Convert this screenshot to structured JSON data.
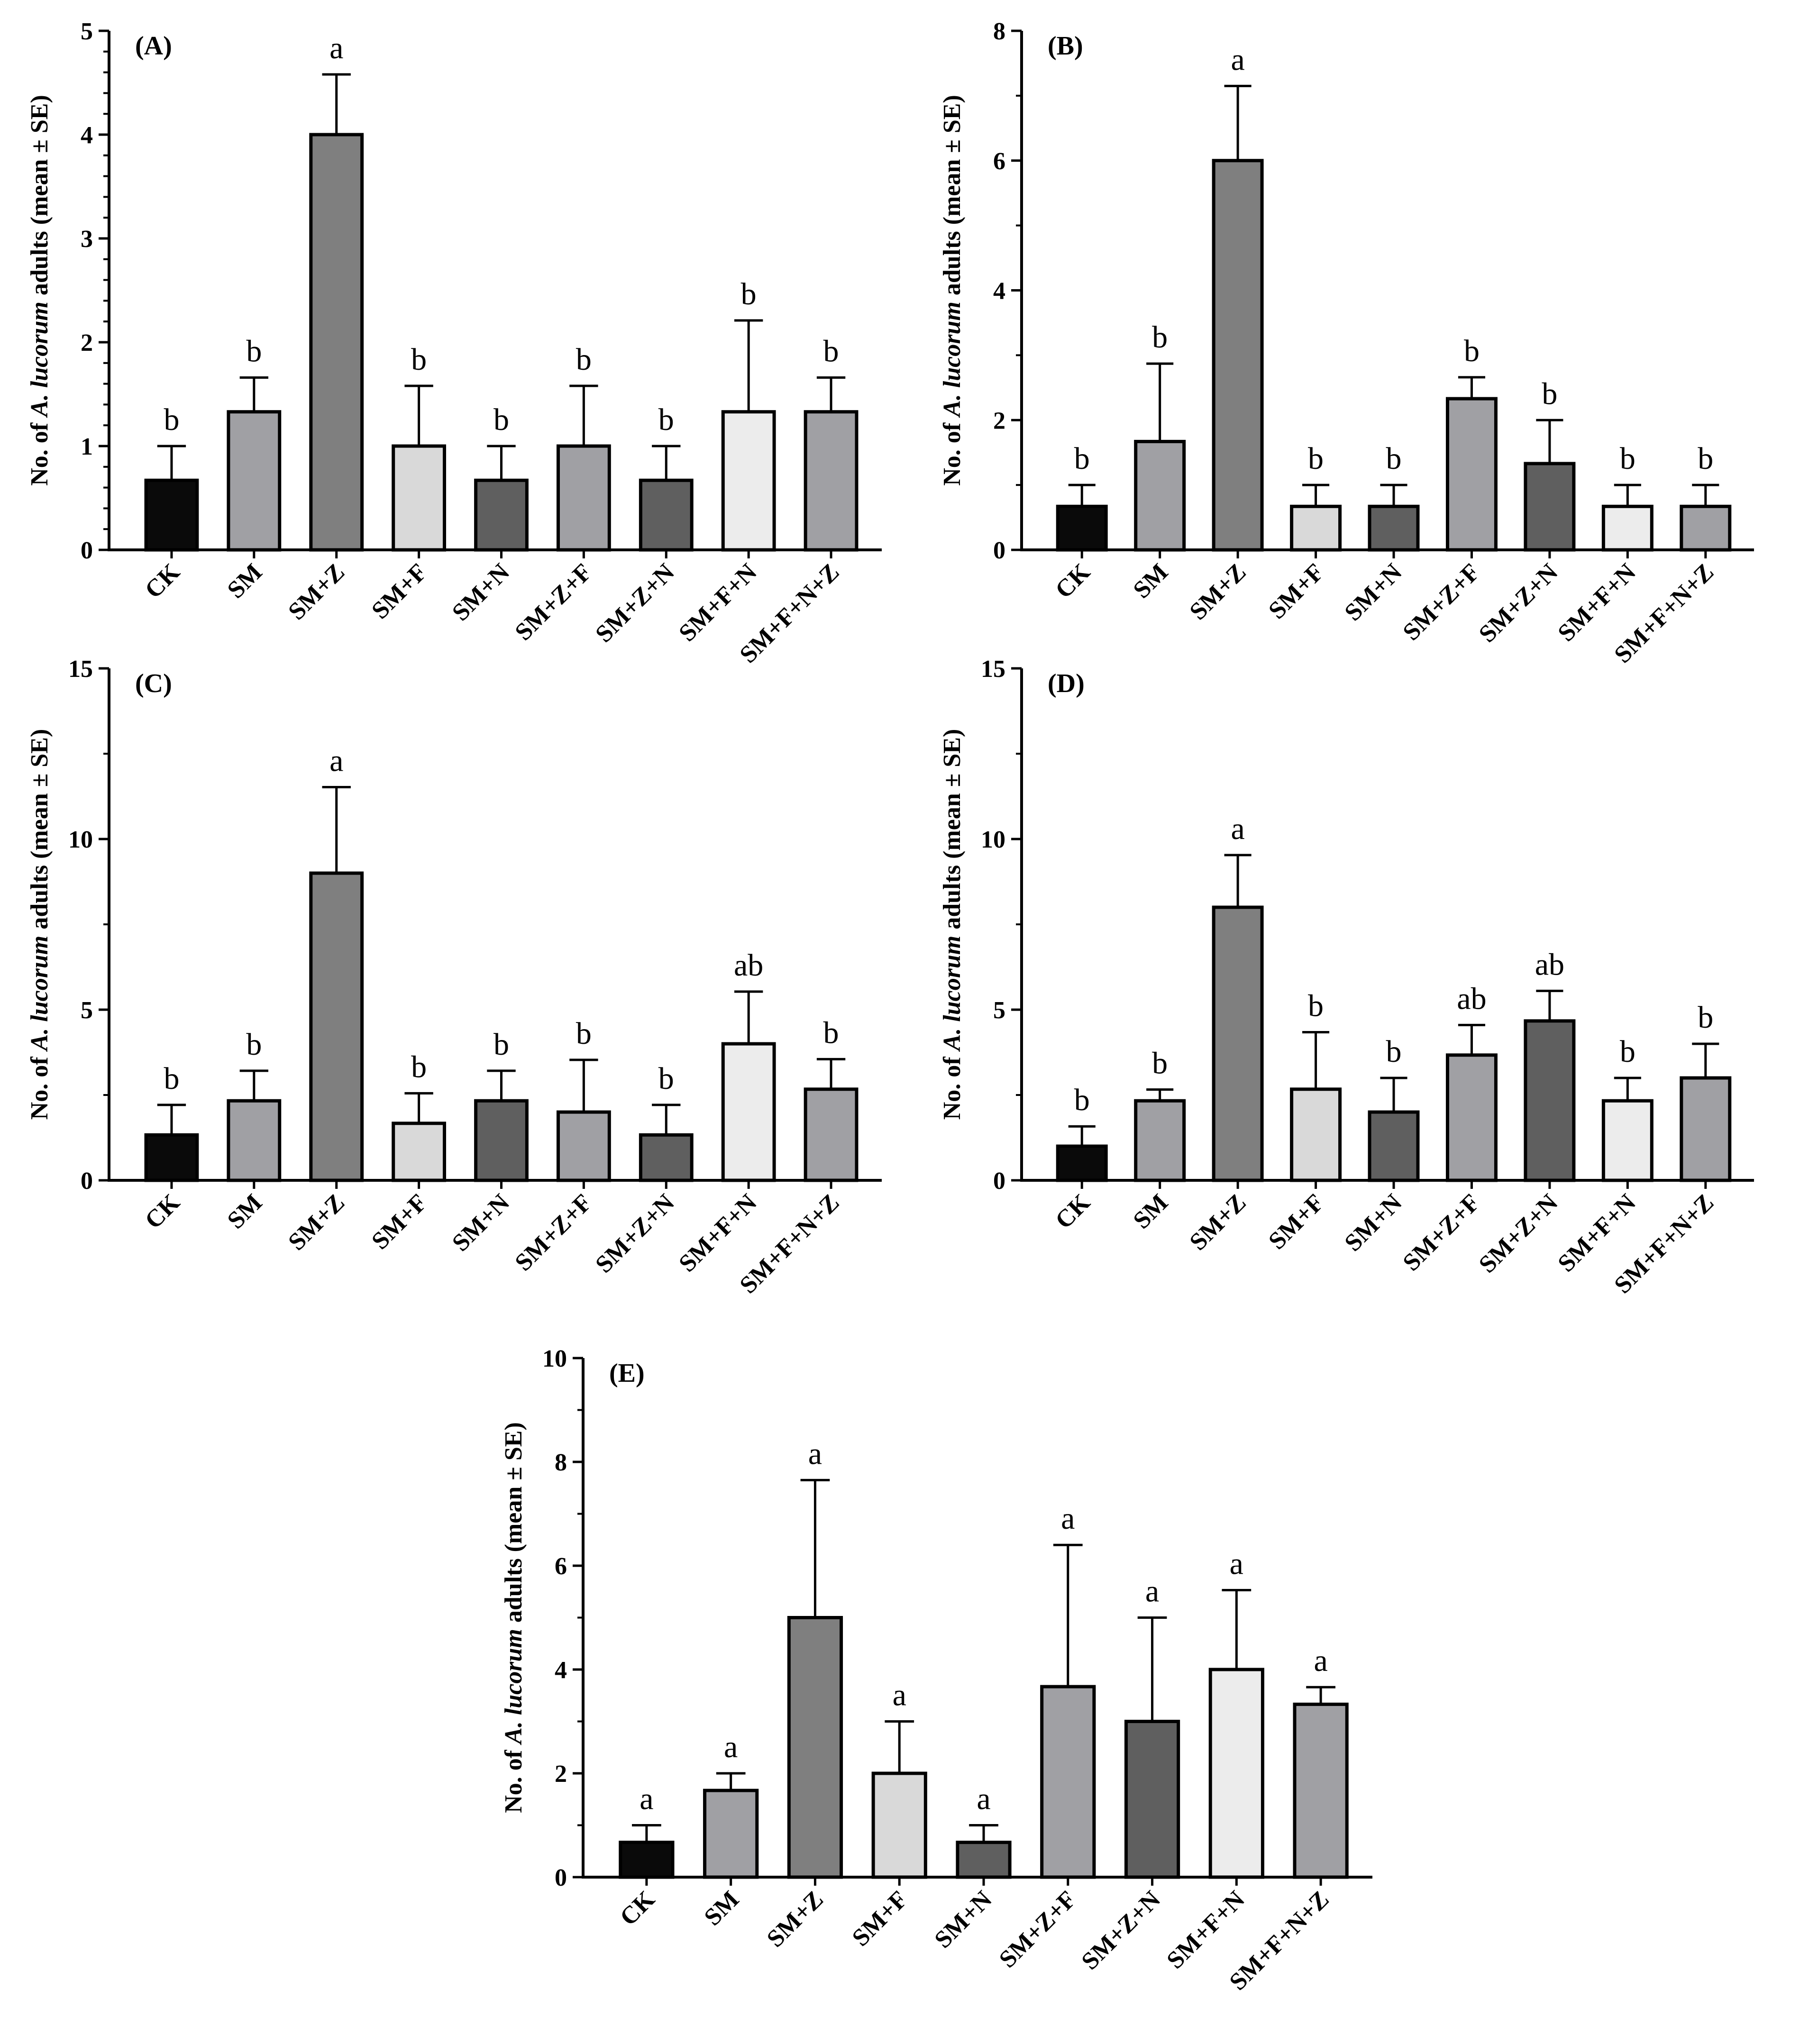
{
  "figure": {
    "ylabel_prefix": "No. of ",
    "ylabel_species": "A. lucorum",
    "ylabel_suffix": " adults (mean ± SE)"
  },
  "chart_data": [
    {
      "type": "bar",
      "panel_label": "(A)",
      "categories": [
        "CK",
        "SM",
        "SM+Z",
        "SM+F",
        "SM+N",
        "SM+Z+F",
        "SM+Z+N",
        "SM+F+N",
        "SM+F+N+Z"
      ],
      "values": [
        0.67,
        1.33,
        4.0,
        1.0,
        0.67,
        1.0,
        0.67,
        1.33,
        1.33
      ],
      "errors": [
        0.33,
        0.33,
        0.58,
        0.58,
        0.33,
        0.58,
        0.33,
        0.88,
        0.33
      ],
      "letters": [
        "b",
        "b",
        "a",
        "b",
        "b",
        "b",
        "b",
        "b",
        "b"
      ],
      "colors": [
        "#0a0a0a",
        "#a0a0a4",
        "#7f7f7f",
        "#d9d9d9",
        "#5f5f5f",
        "#a0a0a4",
        "#5f5f5f",
        "#ececec",
        "#a0a0a4"
      ],
      "ylabel": "No. of A. lucorum adults (mean ± SE)",
      "ylim": [
        0,
        5
      ],
      "yticks": [
        0,
        1,
        2,
        3,
        4,
        5
      ]
    },
    {
      "type": "bar",
      "panel_label": "(B)",
      "categories": [
        "CK",
        "SM",
        "SM+Z",
        "SM+F",
        "SM+N",
        "SM+Z+F",
        "SM+Z+N",
        "SM+F+N",
        "SM+F+N+Z"
      ],
      "values": [
        0.67,
        1.67,
        6.0,
        0.67,
        0.67,
        2.33,
        1.33,
        0.67,
        0.67
      ],
      "errors": [
        0.33,
        1.2,
        1.15,
        0.33,
        0.33,
        0.33,
        0.67,
        0.33,
        0.33
      ],
      "letters": [
        "b",
        "b",
        "a",
        "b",
        "b",
        "b",
        "b",
        "b",
        "b"
      ],
      "colors": [
        "#0a0a0a",
        "#a0a0a4",
        "#7f7f7f",
        "#d9d9d9",
        "#5f5f5f",
        "#a0a0a4",
        "#5f5f5f",
        "#ececec",
        "#a0a0a4"
      ],
      "ylabel": "No. of A. lucorum adults (mean ± SE)",
      "ylim": [
        0,
        8
      ],
      "yticks": [
        0,
        2,
        4,
        6,
        8
      ]
    },
    {
      "type": "bar",
      "panel_label": "(C)",
      "categories": [
        "CK",
        "SM",
        "SM+Z",
        "SM+F",
        "SM+N",
        "SM+Z+F",
        "SM+Z+N",
        "SM+F+N",
        "SM+F+N+Z"
      ],
      "values": [
        1.33,
        2.33,
        9.0,
        1.67,
        2.33,
        2.0,
        1.33,
        4.0,
        2.67
      ],
      "errors": [
        0.88,
        0.88,
        2.52,
        0.88,
        0.88,
        1.53,
        0.88,
        1.53,
        0.88
      ],
      "letters": [
        "b",
        "b",
        "a",
        "b",
        "b",
        "b",
        "b",
        "ab",
        "b"
      ],
      "colors": [
        "#0a0a0a",
        "#a0a0a4",
        "#7f7f7f",
        "#d9d9d9",
        "#5f5f5f",
        "#a0a0a4",
        "#5f5f5f",
        "#ececec",
        "#a0a0a4"
      ],
      "ylabel": "No. of A. lucorum adults (mean ± SE)",
      "ylim": [
        0,
        15
      ],
      "yticks": [
        0,
        5,
        10,
        15
      ]
    },
    {
      "type": "bar",
      "panel_label": "(D)",
      "categories": [
        "CK",
        "SM",
        "SM+Z",
        "SM+F",
        "SM+N",
        "SM+Z+F",
        "SM+Z+N",
        "SM+F+N",
        "SM+F+N+Z"
      ],
      "values": [
        1.0,
        2.33,
        8.0,
        2.67,
        2.0,
        3.67,
        4.67,
        2.33,
        3.0
      ],
      "errors": [
        0.58,
        0.33,
        1.53,
        1.67,
        1.0,
        0.88,
        0.88,
        0.67,
        1.0
      ],
      "letters": [
        "b",
        "b",
        "a",
        "b",
        "b",
        "ab",
        "ab",
        "b",
        "b"
      ],
      "colors": [
        "#0a0a0a",
        "#a0a0a4",
        "#7f7f7f",
        "#d9d9d9",
        "#5f5f5f",
        "#a0a0a4",
        "#5f5f5f",
        "#ececec",
        "#a0a0a4"
      ],
      "ylabel": "No. of A. lucorum adults (mean ± SE)",
      "ylim": [
        0,
        15
      ],
      "yticks": [
        0,
        5,
        10,
        15
      ]
    },
    {
      "type": "bar",
      "panel_label": "(E)",
      "categories": [
        "CK",
        "SM",
        "SM+Z",
        "SM+F",
        "SM+N",
        "SM+Z+F",
        "SM+Z+N",
        "SM+F+N",
        "SM+F+N+Z"
      ],
      "values": [
        0.67,
        1.67,
        5.0,
        2.0,
        0.67,
        3.67,
        3.0,
        4.0,
        3.33
      ],
      "errors": [
        0.33,
        0.33,
        2.65,
        1.0,
        0.33,
        2.73,
        2.0,
        1.53,
        0.33
      ],
      "letters": [
        "a",
        "a",
        "a",
        "a",
        "a",
        "a",
        "a",
        "a",
        "a"
      ],
      "colors": [
        "#0a0a0a",
        "#a0a0a4",
        "#7f7f7f",
        "#d9d9d9",
        "#5f5f5f",
        "#a0a0a4",
        "#5f5f5f",
        "#ececec",
        "#a0a0a4"
      ],
      "ylabel": "No. of A. lucorum adults (mean ± SE)",
      "ylim": [
        0,
        10
      ],
      "yticks": [
        0,
        2,
        4,
        6,
        8,
        10
      ]
    }
  ]
}
